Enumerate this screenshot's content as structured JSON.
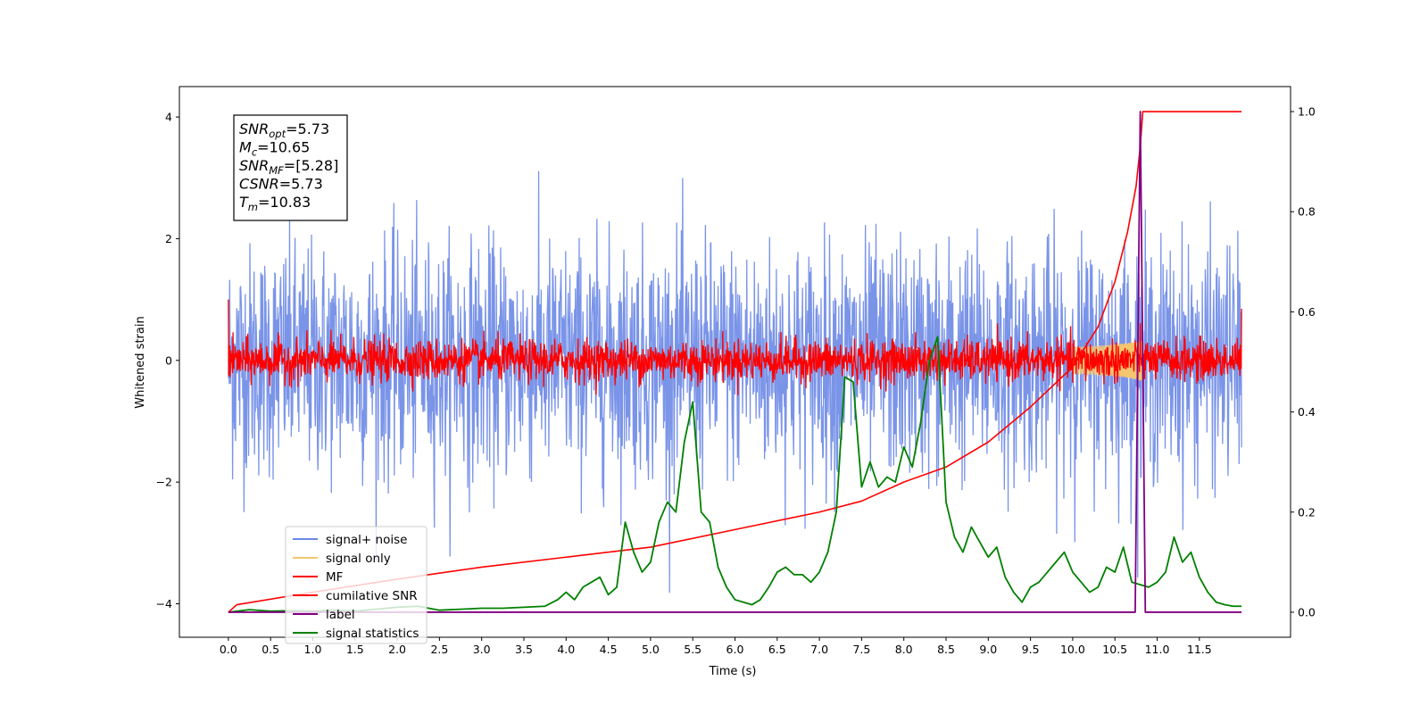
{
  "chart_data": {
    "type": "line",
    "xlabel": "Time (s)",
    "ylabel": "Whitened strain",
    "xlim": [
      -0.58,
      12.58
    ],
    "ylim": [
      -4.55,
      4.5
    ],
    "y2lim": [
      -0.05,
      1.05
    ],
    "xticks": [
      "0.0",
      "0.5",
      "1.0",
      "1.5",
      "2.0",
      "2.5",
      "3.0",
      "3.5",
      "4.0",
      "4.5",
      "5.0",
      "5.5",
      "6.0",
      "6.5",
      "7.0",
      "7.5",
      "8.0",
      "8.5",
      "9.0",
      "9.5",
      "10.0",
      "10.5",
      "11.0",
      "11.5"
    ],
    "yticks": [
      "4",
      "2",
      "0",
      "−2",
      "−4"
    ],
    "y2ticks": [
      "1.0",
      "0.8",
      "0.6",
      "0.4",
      "0.2",
      "0.0"
    ],
    "grid": false,
    "legend_position": "lower-left",
    "colors": {
      "signal_noise": "#6b88e6",
      "signal_only": "#f5c56e",
      "mf": "#ff0000",
      "cumulative_snr": "#ff0000",
      "label": "#800080",
      "statistics": "#008000"
    },
    "annotation": {
      "lines": [
        {
          "base": "SNR",
          "sub": "opt",
          "value": "=5.73"
        },
        {
          "base": "M",
          "sub": "c",
          "value": "=10.65"
        },
        {
          "base": "SNR",
          "sub": "MF",
          "value": "=[5.28]"
        },
        {
          "base": "CSNR",
          "sub": "",
          "value": "=5.73"
        },
        {
          "base": "T",
          "sub": "m",
          "value": "=10.83"
        }
      ]
    },
    "series": [
      {
        "name": "signal+ noise",
        "axis": "left",
        "kind": "noise",
        "x_range": [
          0.0,
          12.0
        ],
        "std": 0.95,
        "peak_max": 4.1,
        "peak_min": -4.1
      },
      {
        "name": "signal only",
        "axis": "left",
        "kind": "chirp",
        "x_range": [
          10.0,
          10.83
        ],
        "amplitude_max": 0.35
      },
      {
        "name": "MF",
        "axis": "left",
        "kind": "noise",
        "x_range": [
          0.0,
          12.0
        ],
        "std": 0.17,
        "start_value": 1.0,
        "end_value": 0.85
      },
      {
        "name": "cumilative SNR",
        "axis": "right",
        "x": [
          0.0,
          0.1,
          1.0,
          2.0,
          3.0,
          4.0,
          5.0,
          6.0,
          7.0,
          7.5,
          8.0,
          8.5,
          9.0,
          9.5,
          10.0,
          10.3,
          10.5,
          10.65,
          10.75,
          10.8,
          10.83,
          11.0,
          11.5,
          12.0
        ],
        "y": [
          0.0,
          0.015,
          0.04,
          0.066,
          0.09,
          0.11,
          0.13,
          0.165,
          0.2,
          0.222,
          0.26,
          0.29,
          0.34,
          0.41,
          0.49,
          0.57,
          0.66,
          0.76,
          0.85,
          0.93,
          1.0,
          1.0,
          1.0,
          1.0
        ]
      },
      {
        "name": "label",
        "axis": "right",
        "x": [
          0.0,
          10.74,
          10.8,
          10.86,
          12.0
        ],
        "y": [
          0.0,
          0.0,
          1.0,
          0.0,
          0.0
        ]
      },
      {
        "name": "signal statistics",
        "axis": "right",
        "x": [
          0.0,
          0.25,
          0.5,
          0.75,
          1.0,
          1.25,
          1.5,
          1.75,
          2.0,
          2.25,
          2.5,
          2.75,
          3.0,
          3.25,
          3.5,
          3.75,
          3.9,
          4.0,
          4.1,
          4.2,
          4.3,
          4.4,
          4.5,
          4.6,
          4.7,
          4.8,
          4.9,
          5.0,
          5.1,
          5.2,
          5.3,
          5.4,
          5.5,
          5.6,
          5.7,
          5.8,
          5.9,
          6.0,
          6.1,
          6.2,
          6.3,
          6.4,
          6.5,
          6.6,
          6.7,
          6.8,
          6.9,
          7.0,
          7.1,
          7.2,
          7.3,
          7.4,
          7.5,
          7.6,
          7.7,
          7.8,
          7.9,
          8.0,
          8.1,
          8.2,
          8.3,
          8.4,
          8.5,
          8.6,
          8.7,
          8.8,
          8.9,
          9.0,
          9.1,
          9.2,
          9.3,
          9.4,
          9.5,
          9.6,
          9.7,
          9.8,
          9.9,
          10.0,
          10.1,
          10.2,
          10.3,
          10.4,
          10.5,
          10.6,
          10.7,
          10.8,
          10.9,
          11.0,
          11.1,
          11.2,
          11.3,
          11.4,
          11.5,
          11.6,
          11.7,
          11.8,
          11.9,
          12.0
        ],
        "y": [
          0.0,
          0.005,
          0.002,
          0.003,
          0.002,
          0.004,
          0.002,
          0.006,
          0.01,
          0.012,
          0.004,
          0.006,
          0.008,
          0.008,
          0.01,
          0.012,
          0.025,
          0.04,
          0.025,
          0.05,
          0.06,
          0.07,
          0.035,
          0.05,
          0.18,
          0.12,
          0.08,
          0.1,
          0.18,
          0.22,
          0.2,
          0.34,
          0.42,
          0.2,
          0.18,
          0.09,
          0.05,
          0.025,
          0.02,
          0.015,
          0.025,
          0.05,
          0.08,
          0.09,
          0.075,
          0.075,
          0.06,
          0.08,
          0.12,
          0.2,
          0.47,
          0.46,
          0.25,
          0.3,
          0.25,
          0.27,
          0.26,
          0.33,
          0.29,
          0.38,
          0.5,
          0.55,
          0.22,
          0.15,
          0.12,
          0.17,
          0.14,
          0.11,
          0.13,
          0.07,
          0.04,
          0.02,
          0.05,
          0.06,
          0.08,
          0.1,
          0.12,
          0.08,
          0.06,
          0.04,
          0.05,
          0.09,
          0.08,
          0.13,
          0.06,
          0.055,
          0.05,
          0.06,
          0.08,
          0.15,
          0.1,
          0.12,
          0.07,
          0.04,
          0.02,
          0.015,
          0.012,
          0.012
        ]
      }
    ]
  }
}
